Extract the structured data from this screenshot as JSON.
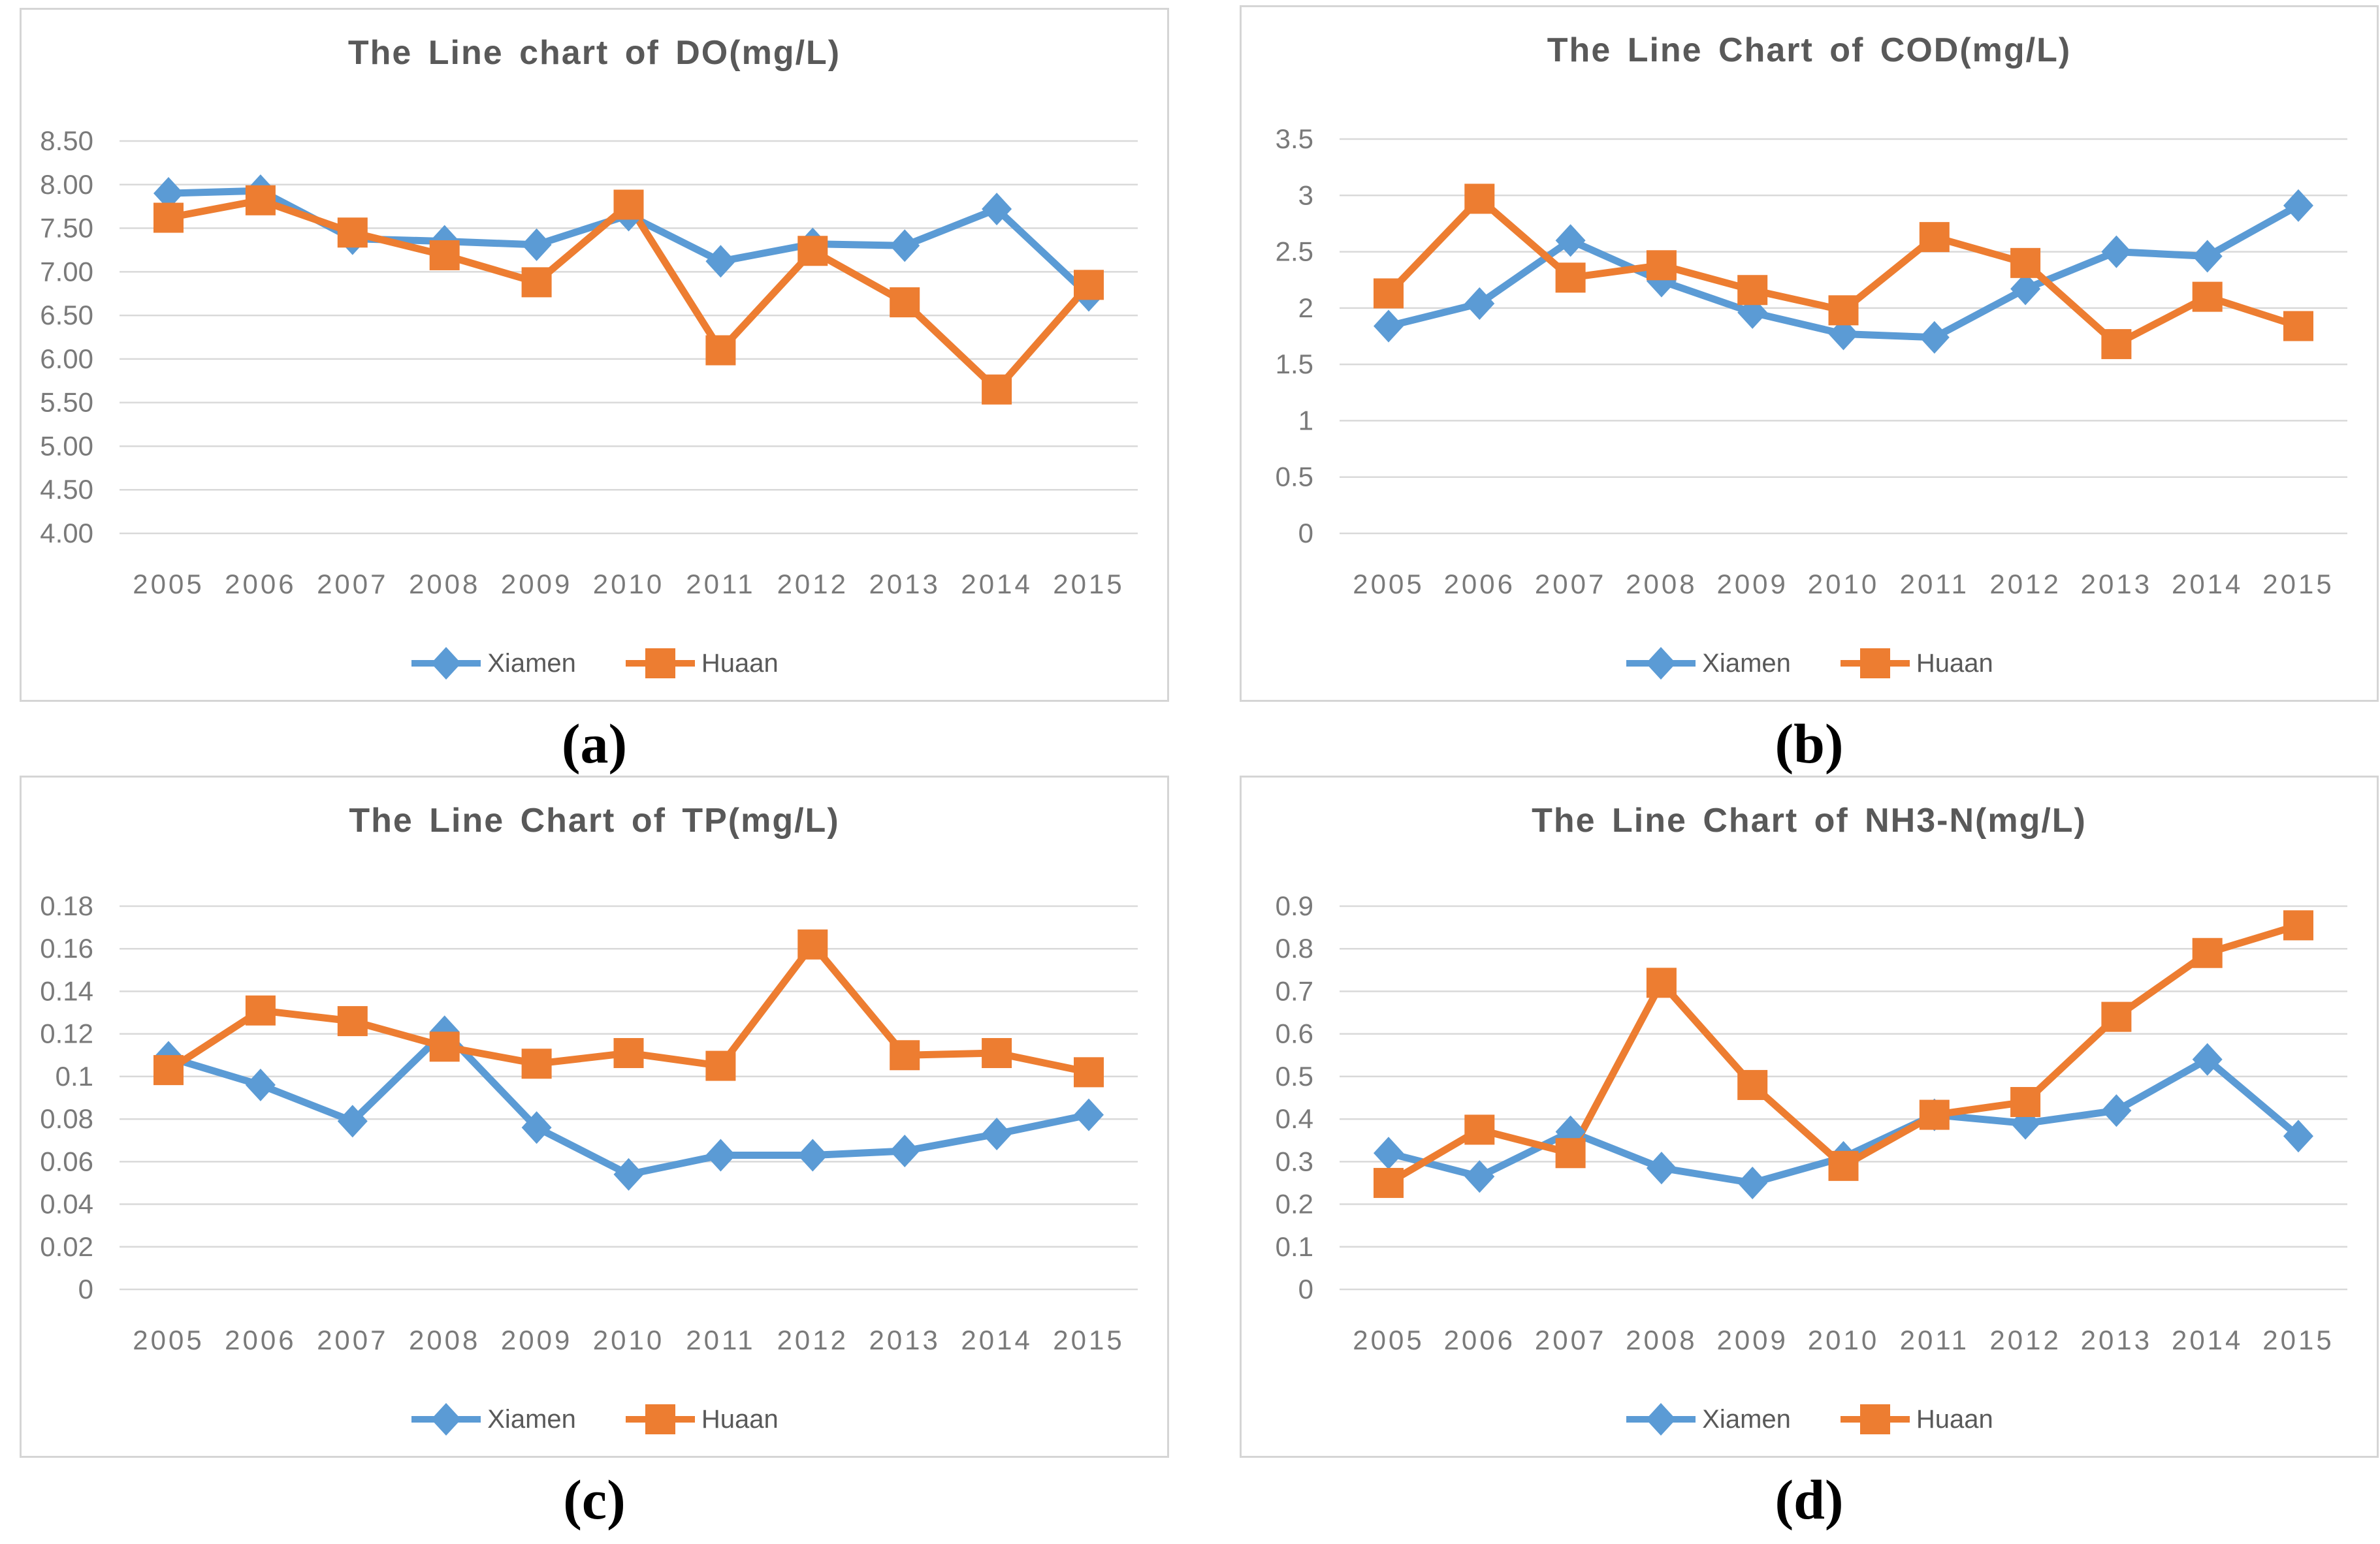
{
  "page": {
    "background": "#ffffff",
    "kind": "2x2 grid of Excel-style line charts"
  },
  "palette": {
    "xiamen": "#5B9BD5",
    "huaan": "#ED7D31",
    "title_color": "#595959",
    "tick_color": "#7a7a7a",
    "grid_color": "#d9d9d9",
    "panel_border": "#d5d5d5",
    "legend_text": "#595959",
    "sublabel_color": "#000000"
  },
  "legend": {
    "items": [
      {
        "label": "Xiamen",
        "marker": "diamond",
        "color_key": "xiamen"
      },
      {
        "label": "Huaan",
        "marker": "square",
        "color_key": "huaan"
      }
    ]
  },
  "chart_data": [
    {
      "id": "a",
      "type": "line",
      "sublabel": "(a)",
      "title": "The Line chart of DO(mg/L)",
      "xlabel": "",
      "ylabel": "",
      "grid": true,
      "legend_position": "bottom",
      "categories": [
        "2005",
        "2006",
        "2007",
        "2008",
        "2009",
        "2010",
        "2011",
        "2012",
        "2013",
        "2014",
        "2015"
      ],
      "ylim": [
        4.0,
        8.5
      ],
      "ystep": 0.5,
      "y_ticks": [
        "8.50",
        "8.00",
        "7.50",
        "7.00",
        "6.50",
        "6.00",
        "5.50",
        "5.00",
        "4.50",
        "4.00"
      ],
      "series": [
        {
          "name": "Xiamen",
          "marker": "diamond",
          "color_key": "xiamen",
          "values": [
            7.9,
            7.93,
            7.38,
            7.35,
            7.31,
            7.65,
            7.12,
            7.32,
            7.3,
            7.72,
            6.73
          ]
        },
        {
          "name": "Huaan",
          "marker": "square",
          "color_key": "huaan",
          "values": [
            7.62,
            7.82,
            7.45,
            7.19,
            6.88,
            7.77,
            6.1,
            7.24,
            6.65,
            5.65,
            6.85
          ]
        }
      ]
    },
    {
      "id": "b",
      "type": "line",
      "sublabel": "(b)",
      "title": "The Line Chart of COD(mg/L)",
      "xlabel": "",
      "ylabel": "",
      "grid": true,
      "legend_position": "bottom",
      "categories": [
        "2005",
        "2006",
        "2007",
        "2008",
        "2009",
        "2010",
        "2011",
        "2012",
        "2013",
        "2014",
        "2015"
      ],
      "ylim": [
        0,
        3.5
      ],
      "ystep": 0.5,
      "y_ticks": [
        "3.5",
        "3",
        "2.5",
        "2",
        "1.5",
        "1",
        "0.5",
        "0"
      ],
      "series": [
        {
          "name": "Xiamen",
          "marker": "diamond",
          "color_key": "xiamen",
          "values": [
            1.84,
            2.04,
            2.6,
            2.24,
            1.96,
            1.77,
            1.74,
            2.17,
            2.5,
            2.46,
            2.91
          ]
        },
        {
          "name": "Huaan",
          "marker": "square",
          "color_key": "huaan",
          "values": [
            2.13,
            2.97,
            2.27,
            2.38,
            2.16,
            1.98,
            2.63,
            2.4,
            1.68,
            2.1,
            1.84
          ]
        }
      ]
    },
    {
      "id": "c",
      "type": "line",
      "sublabel": "(c)",
      "title": "The Line Chart of TP(mg/L)",
      "xlabel": "",
      "ylabel": "",
      "grid": true,
      "legend_position": "bottom",
      "categories": [
        "2005",
        "2006",
        "2007",
        "2008",
        "2009",
        "2010",
        "2011",
        "2012",
        "2013",
        "2014",
        "2015"
      ],
      "ylim": [
        0,
        0.18
      ],
      "ystep": 0.02,
      "y_ticks": [
        "0.18",
        "0.16",
        "0.14",
        "0.12",
        "0.1",
        "0.08",
        "0.06",
        "0.04",
        "0.02",
        "0"
      ],
      "series": [
        {
          "name": "Xiamen",
          "marker": "diamond",
          "color_key": "xiamen",
          "values": [
            0.109,
            0.096,
            0.079,
            0.121,
            0.076,
            0.054,
            0.063,
            0.063,
            0.065,
            0.073,
            0.082
          ]
        },
        {
          "name": "Huaan",
          "marker": "square",
          "color_key": "huaan",
          "values": [
            0.103,
            0.131,
            0.126,
            0.114,
            0.106,
            0.111,
            0.105,
            0.162,
            0.11,
            0.111,
            0.102
          ]
        }
      ]
    },
    {
      "id": "d",
      "type": "line",
      "sublabel": "(d)",
      "title": "The Line Chart of NH3-N(mg/L)",
      "xlabel": "",
      "ylabel": "",
      "grid": true,
      "legend_position": "bottom",
      "categories": [
        "2005",
        "2006",
        "2007",
        "2008",
        "2009",
        "2010",
        "2011",
        "2012",
        "2013",
        "2014",
        "2015"
      ],
      "ylim": [
        0,
        0.9
      ],
      "ystep": 0.1,
      "y_ticks": [
        "0.9",
        "0.8",
        "0.7",
        "0.6",
        "0.5",
        "0.4",
        "0.3",
        "0.2",
        "0.1",
        "0"
      ],
      "series": [
        {
          "name": "Xiamen",
          "marker": "diamond",
          "color_key": "xiamen",
          "values": [
            0.32,
            0.265,
            0.37,
            0.285,
            0.25,
            0.31,
            0.41,
            0.39,
            0.42,
            0.54,
            0.36
          ]
        },
        {
          "name": "Huaan",
          "marker": "square",
          "color_key": "huaan",
          "values": [
            0.25,
            0.375,
            0.32,
            0.72,
            0.48,
            0.29,
            0.41,
            0.44,
            0.64,
            0.79,
            0.855
          ]
        }
      ]
    }
  ]
}
